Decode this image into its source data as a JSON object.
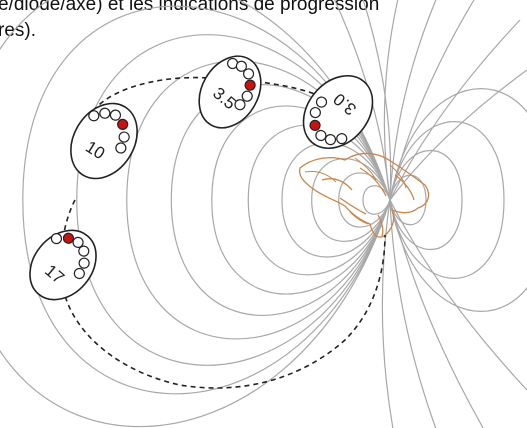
{
  "caption": {
    "line1": "e/diode/axe) et les indications de progression",
    "line2": "res)."
  },
  "colors": {
    "field_lines": "#a8a8a8",
    "dashed_path": "#222222",
    "dot_active": "#cc1111",
    "dot_empty": "#ffffff",
    "bird_sketch": "#c8864a"
  },
  "markers": [
    {
      "label": "3.5"
    },
    {
      "label": "10"
    },
    {
      "label": "3.0"
    },
    {
      "label": "17"
    }
  ]
}
